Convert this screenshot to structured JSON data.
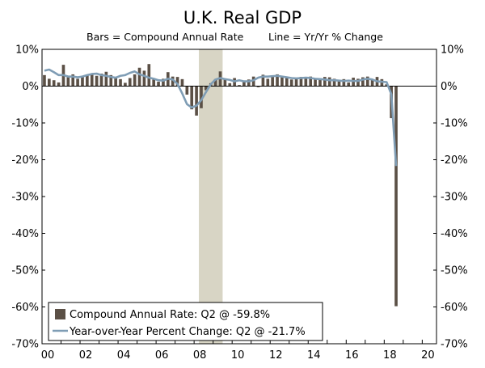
{
  "chart_data": {
    "type": "bar+line",
    "title": "U.K. Real GDP",
    "subtitle_left": "Bars = Compound Annual Rate",
    "subtitle_right": "Line = Yr/Yr % Change",
    "ylim": [
      -70,
      10
    ],
    "y_ticks": [
      "10%",
      "0%",
      "-10%",
      "-20%",
      "-30%",
      "-40%",
      "-50%",
      "-60%",
      "-70%"
    ],
    "y_tick_values": [
      10,
      0,
      -10,
      -20,
      -30,
      -40,
      -50,
      -60,
      -70
    ],
    "x_ticks": [
      "00",
      "02",
      "04",
      "06",
      "08",
      "10",
      "12",
      "14",
      "16",
      "18",
      "20"
    ],
    "x_tick_values": [
      2000,
      2002,
      2004,
      2006,
      2008,
      2010,
      2012,
      2014,
      2016,
      2018,
      2020
    ],
    "xlim": [
      2000,
      2020.75
    ],
    "grid": false,
    "legend_position": "bottom-left",
    "recession": {
      "start": 2008.25,
      "end": 2009.5,
      "color": "#d8d5c5"
    },
    "colors": {
      "bars": "#5b5046",
      "line": "#7f9db5"
    },
    "series": [
      {
        "name": "Compound Annual Rate: Q2 @ -59.8%",
        "kind": "bar",
        "start": 2000,
        "step": 0.25,
        "values": [
          3.0,
          2.0,
          1.6,
          1.0,
          5.8,
          2.4,
          3.2,
          2.0,
          2.5,
          3.0,
          3.3,
          2.8,
          3.4,
          3.9,
          3.0,
          2.4,
          1.9,
          0.9,
          2.2,
          3.2,
          5.0,
          4.2,
          6.0,
          1.8,
          1.2,
          2.0,
          3.8,
          2.6,
          2.5,
          1.9,
          -2.3,
          -6.3,
          -8.0,
          -6.0,
          -1.1,
          0.8,
          1.9,
          4.0,
          2.1,
          0.8,
          2.2,
          0.3,
          1.2,
          1.8,
          2.6,
          -0.3,
          3.1,
          2.0,
          2.8,
          3.2,
          2.6,
          2.4,
          1.8,
          2.2,
          2.5,
          2.4,
          2.6,
          2.1,
          1.8,
          2.5,
          2.4,
          2.0,
          1.5,
          1.9,
          1.0,
          2.3,
          2.0,
          2.4,
          2.6,
          1.7,
          2.5,
          1.9,
          0.5,
          -8.7,
          -59.8
        ]
      },
      {
        "name": "Year-over-Year Percent Change: Q2 @ -21.7%",
        "kind": "line",
        "start": 2000,
        "step": 0.25,
        "values": [
          4.2,
          4.5,
          3.8,
          3.0,
          3.0,
          2.6,
          2.6,
          2.4,
          2.6,
          3.0,
          3.3,
          3.4,
          3.0,
          2.8,
          2.5,
          2.3,
          2.8,
          3.0,
          3.6,
          4.0,
          3.2,
          2.8,
          2.3,
          2.0,
          1.6,
          1.5,
          2.0,
          1.8,
          0.6,
          -2.0,
          -4.9,
          -5.8,
          -5.3,
          -3.8,
          -1.6,
          0.5,
          1.8,
          2.2,
          1.9,
          1.7,
          1.3,
          1.6,
          1.3,
          1.3,
          1.6,
          2.3,
          2.6,
          2.6,
          2.7,
          2.8,
          2.6,
          2.4,
          2.2,
          2.1,
          2.2,
          2.3,
          2.2,
          2.0,
          1.9,
          1.8,
          1.6,
          1.6,
          1.5,
          1.4,
          1.5,
          1.4,
          1.4,
          1.8,
          2.0,
          1.8,
          1.3,
          1.2,
          1.1,
          -2.2,
          -21.7
        ]
      }
    ]
  }
}
